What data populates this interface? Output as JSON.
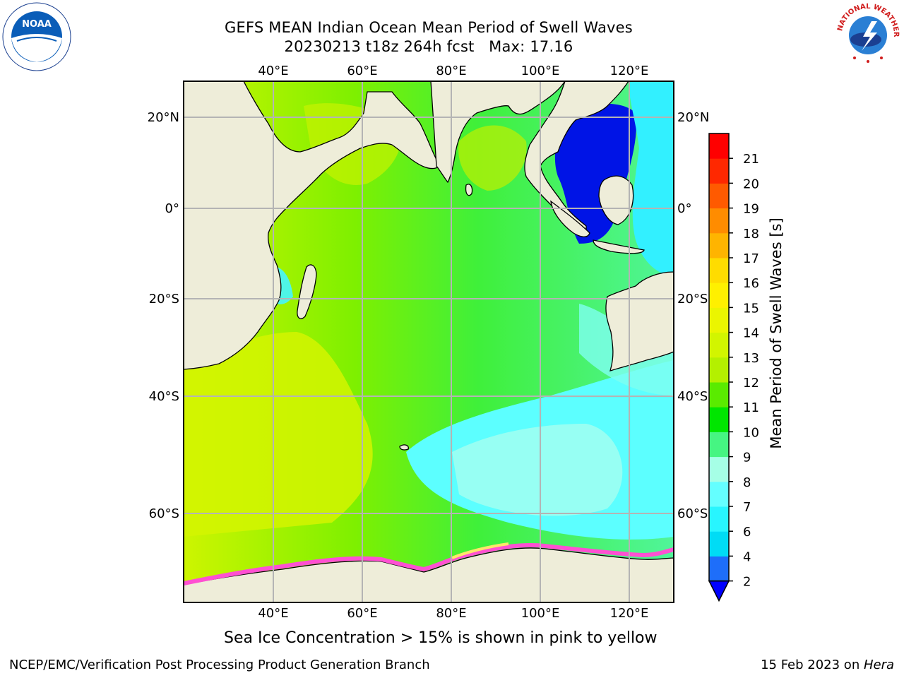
{
  "title_line1": "GEFS MEAN Indian Ocean Mean Period of Swell Waves",
  "title_line2": "20230213 t18z 264h fcst   Max: 17.16",
  "longitude_labels": [
    "40°E",
    "60°E",
    "80°E",
    "100°E",
    "120°E"
  ],
  "latitude_labels": [
    "20°N",
    "0°",
    "20°S",
    "40°S",
    "60°S"
  ],
  "colorbar": {
    "label": "Mean Period of Swell Waves [s]",
    "ticks": [
      "2",
      "4",
      "6",
      "7",
      "8",
      "9",
      "10",
      "11",
      "12",
      "13",
      "14",
      "15",
      "16",
      "17",
      "18",
      "19",
      "20",
      "21"
    ],
    "colors": [
      "#1e6efa",
      "#00dcf5",
      "#28f5ff",
      "#64ffff",
      "#a6ffe6",
      "#46f582",
      "#00e600",
      "#5aeb00",
      "#b4f000",
      "#d2f500",
      "#ebf500",
      "#fff000",
      "#ffdc00",
      "#ffb400",
      "#ff8c00",
      "#ff5a00",
      "#ff2800",
      "#ff0000"
    ],
    "extend_color": "#0000ff"
  },
  "sea_ice_note": "Sea Ice Concentration > 15% is shown in pink to yellow",
  "footer_left": "NCEP/EMC/Verification Post Processing Product Generation Branch",
  "footer_right_date": "15 Feb 2023 on ",
  "footer_right_machine": "Hera",
  "logos": {
    "left": "NOAA",
    "right": "NATIONAL WEATHER SERVICE"
  }
}
